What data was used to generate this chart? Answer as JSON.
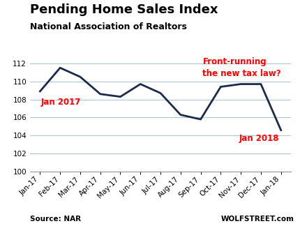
{
  "title": "Pending Home Sales Index",
  "subtitle": "National Association of Realtors",
  "months": [
    "Jan-17",
    "Feb-17",
    "Mar-17",
    "Apr-17",
    "May-17",
    "Jun-17",
    "Jul-17",
    "Aug-17",
    "Sep-17",
    "Oct-17",
    "Nov-17",
    "Dec-17",
    "Jan-18"
  ],
  "values": [
    108.9,
    111.5,
    110.5,
    108.6,
    108.3,
    109.7,
    108.7,
    106.3,
    105.8,
    109.4,
    109.7,
    109.7,
    104.6
  ],
  "line_color": "#1b2a4a",
  "line_width": 2.0,
  "ylim": [
    100,
    113
  ],
  "yticks": [
    100,
    102,
    104,
    106,
    108,
    110,
    112
  ],
  "grid_color": "#a8c4d8",
  "annotation_jan2017": "Jan 2017",
  "annotation_jan2018": "Jan 2018",
  "annotation_frontrunning": "Front-running\nthe new tax law?",
  "annotation_color": "#ff0000",
  "source_text": "Source: NAR",
  "watermark_text": "WOLFSTREET.com",
  "background_color": "#ffffff",
  "title_fontsize": 13,
  "subtitle_fontsize": 9,
  "tick_fontsize": 7.5,
  "annotation_fontsize": 8.5,
  "footer_fontsize": 7.5
}
